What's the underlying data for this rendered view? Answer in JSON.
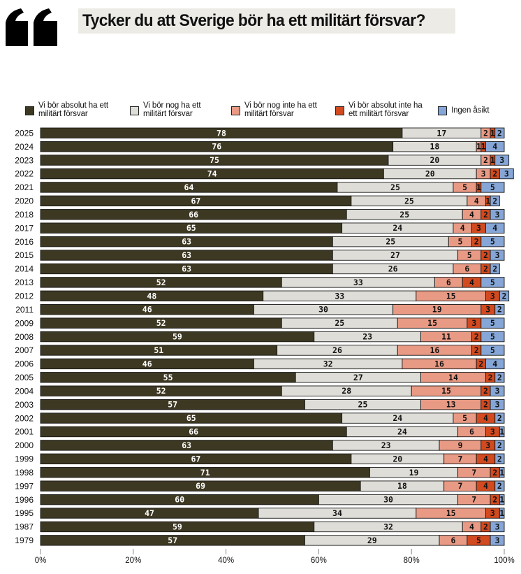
{
  "header": {
    "title": "Tycker du att Sverige bör ha ett militärt försvar?",
    "icon": "quote-icon"
  },
  "colors": {
    "series": [
      "#3d3822",
      "#deddd8",
      "#e99a84",
      "#d24a1f",
      "#85a6d6"
    ],
    "label_text": [
      "#ffffff",
      "#111111",
      "#111111",
      "#111111",
      "#111111"
    ]
  },
  "legend": {
    "items": [
      {
        "label": "Vi bör absolut ha ett\nmilitärt försvar"
      },
      {
        "label": "Vi bör nog ha ett\nmilitärt försvar"
      },
      {
        "label": "Vi bör nog inte ha ett\nmilitärt försvar"
      },
      {
        "label": "Vi bör absolut inte ha\nett militärt försvar"
      },
      {
        "label": "Ingen åsikt"
      }
    ]
  },
  "chart_data": {
    "type": "bar",
    "orientation": "horizontal",
    "stacked": true,
    "title": "Tycker du att Sverige bör ha ett militärt försvar?",
    "xlabel": "",
    "ylabel": "",
    "xlim": [
      0,
      100
    ],
    "x_ticks": [
      "0%",
      "20%",
      "40%",
      "60%",
      "80%",
      "100%"
    ],
    "legend_position": "top",
    "grid": false,
    "categories": [
      "2025",
      "2024",
      "2023",
      "2022",
      "2021",
      "2020",
      "2018",
      "2017",
      "2016",
      "2015",
      "2014",
      "2013",
      "2012",
      "2011",
      "2009",
      "2008",
      "2007",
      "2006",
      "2005",
      "2004",
      "2003",
      "2002",
      "2001",
      "2000",
      "1999",
      "1998",
      "1997",
      "1996",
      "1995",
      "1987",
      "1979"
    ],
    "series": [
      {
        "name": "Vi bör absolut ha ett militärt försvar",
        "values": [
          78,
          76,
          75,
          74,
          64,
          67,
          66,
          65,
          63,
          63,
          63,
          52,
          48,
          46,
          52,
          59,
          51,
          46,
          55,
          52,
          57,
          65,
          66,
          63,
          67,
          71,
          69,
          60,
          47,
          59,
          57
        ]
      },
      {
        "name": "Vi bör nog ha ett militärt försvar",
        "values": [
          17,
          18,
          20,
          20,
          25,
          25,
          25,
          24,
          25,
          27,
          26,
          33,
          33,
          30,
          25,
          23,
          26,
          32,
          27,
          28,
          25,
          24,
          24,
          23,
          20,
          19,
          18,
          30,
          34,
          32,
          29
        ]
      },
      {
        "name": "Vi bör nog inte ha ett militärt försvar",
        "values": [
          2,
          1,
          2,
          3,
          5,
          4,
          4,
          4,
          5,
          5,
          6,
          6,
          15,
          19,
          15,
          11,
          16,
          16,
          14,
          15,
          13,
          5,
          6,
          9,
          7,
          7,
          7,
          7,
          15,
          4,
          6
        ]
      },
      {
        "name": "Vi bör absolut inte ha ett militärt försvar",
        "values": [
          1,
          1,
          1,
          2,
          1,
          1,
          2,
          3,
          2,
          2,
          2,
          4,
          3,
          3,
          3,
          2,
          2,
          2,
          2,
          2,
          2,
          4,
          3,
          3,
          4,
          2,
          4,
          2,
          3,
          2,
          5
        ]
      },
      {
        "name": "Ingen åsikt",
        "values": [
          2,
          4,
          3,
          3,
          5,
          2,
          3,
          4,
          5,
          3,
          2,
          5,
          2,
          2,
          5,
          5,
          5,
          4,
          2,
          3,
          3,
          2,
          1,
          2,
          2,
          1,
          2,
          1,
          1,
          3,
          3
        ]
      }
    ]
  }
}
